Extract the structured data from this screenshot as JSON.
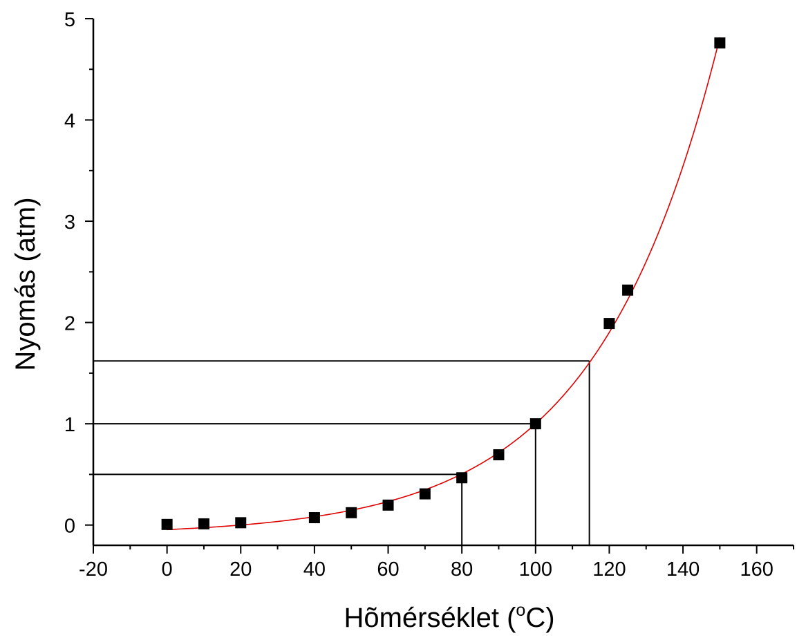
{
  "chart_data": {
    "type": "scatter",
    "title": "",
    "xlabel": "Hõmérséklet (",
    "xlabel_sup": "o",
    "xlabel_suffix": "C)",
    "ylabel": "Nyomás (atm)",
    "xlim": [
      -20,
      170
    ],
    "ylim": [
      -0.2,
      5
    ],
    "xticks": [
      -20,
      0,
      20,
      40,
      60,
      80,
      100,
      120,
      140,
      160
    ],
    "yticks": [
      0,
      1,
      2,
      3,
      4,
      5
    ],
    "grid": false,
    "legend": "none",
    "series": [
      {
        "marker": "square",
        "color": "#000000",
        "points": [
          {
            "x": 0,
            "y": 0.006
          },
          {
            "x": 10,
            "y": 0.012
          },
          {
            "x": 20,
            "y": 0.023
          },
          {
            "x": 40,
            "y": 0.073
          },
          {
            "x": 50,
            "y": 0.122
          },
          {
            "x": 60,
            "y": 0.197
          },
          {
            "x": 70,
            "y": 0.308
          },
          {
            "x": 80,
            "y": 0.467
          },
          {
            "x": 90,
            "y": 0.694
          },
          {
            "x": 100,
            "y": 1.0
          },
          {
            "x": 120,
            "y": 1.99
          },
          {
            "x": 125,
            "y": 2.32
          },
          {
            "x": 150,
            "y": 4.76
          }
        ]
      }
    ],
    "fit": {
      "type": "exponential",
      "color": "#e00000",
      "x_range": [
        0,
        150
      ],
      "params": {
        "y0": -0.1,
        "A": 0.0551,
        "t": 33.4
      }
    },
    "reference_lines": [
      {
        "x": 80,
        "y": 0.5
      },
      {
        "x": 100,
        "y": 1.0
      },
      {
        "x": 114.6,
        "y": 1.62
      }
    ]
  }
}
